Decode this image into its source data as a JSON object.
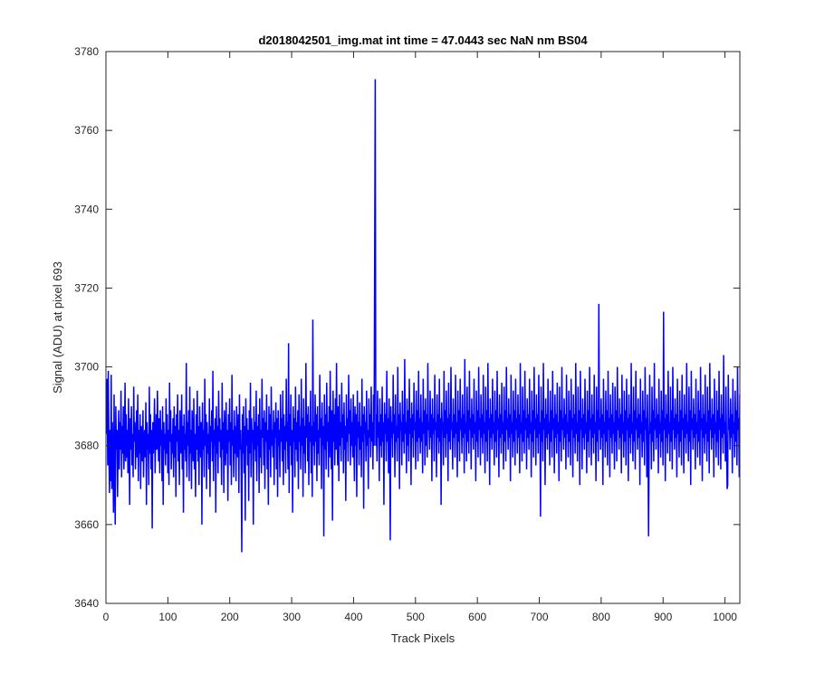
{
  "chart_data": {
    "type": "line",
    "title": "d2018042501_img.mat int time = 47.0443 sec  NaN nm BS04",
    "xlabel": "Track Pixels",
    "ylabel": "Signal (ADU) at pixel 693",
    "xlim": [
      0,
      1024
    ],
    "ylim": [
      3640,
      3780
    ],
    "xticks": [
      0,
      100,
      200,
      300,
      400,
      500,
      600,
      700,
      800,
      900,
      1000
    ],
    "yticks": [
      3640,
      3660,
      3680,
      3700,
      3720,
      3740,
      3760,
      3780
    ],
    "grid": false,
    "legend": "none",
    "series_color": "#0000ff",
    "x_start": 1,
    "y": [
      3683,
      3697,
      3675,
      3699,
      3680,
      3668,
      3684,
      3671,
      3698,
      3669,
      3686,
      3676,
      3663,
      3693,
      3672,
      3660,
      3690,
      3679,
      3684,
      3667,
      3681,
      3689,
      3674,
      3686,
      3679,
      3694,
      3672,
      3685,
      3678,
      3690,
      3674,
      3682,
      3696,
      3676,
      3688,
      3677,
      3684,
      3673,
      3692,
      3680,
      3665,
      3687,
      3679,
      3690,
      3675,
      3683,
      3672,
      3695,
      3681,
      3686,
      3674,
      3681,
      3689,
      3677,
      3693,
      3671,
      3684,
      3678,
      3688,
      3669,
      3685,
      3683,
      3676,
      3689,
      3672,
      3682,
      3684,
      3677,
      3691,
      3665,
      3686,
      3679,
      3683,
      3670,
      3695,
      3678,
      3688,
      3674,
      3684,
      3659,
      3686,
      3678,
      3683,
      3692,
      3673,
      3681,
      3688,
      3679,
      3694,
      3683,
      3676,
      3687,
      3673,
      3689,
      3680,
      3684,
      3671,
      3690,
      3665,
      3686,
      3679,
      3683,
      3675,
      3692,
      3678,
      3688,
      3673,
      3684,
      3670,
      3696,
      3681,
      3689,
      3674,
      3683,
      3678,
      3687,
      3672,
      3690,
      3677,
      3685,
      3667,
      3688,
      3681,
      3693,
      3676,
      3684,
      3670,
      3689,
      3682,
      3678,
      3693,
      3674,
      3685,
      3663,
      3688,
      3679,
      3683,
      3676,
      3701,
      3672,
      3686,
      3680,
      3689,
      3671,
      3695,
      3678,
      3684,
      3669,
      3689,
      3681,
      3676,
      3692,
      3674,
      3683,
      3667,
      3688,
      3679,
      3694,
      3676,
      3685,
      3670,
      3690,
      3682,
      3677,
      3686,
      3660,
      3691,
      3679,
      3684,
      3672,
      3697,
      3680,
      3688,
      3669,
      3686,
      3678,
      3683,
      3674,
      3692,
      3667,
      3685,
      3681,
      3689,
      3676,
      3699,
      3671,
      3684,
      3680,
      3687,
      3663,
      3690,
      3678,
      3685,
      3673,
      3694,
      3681,
      3687,
      3677,
      3684,
      3670,
      3696,
      3679,
      3686,
      3668,
      3689,
      3682,
      3675,
      3691,
      3678,
      3684,
      3666,
      3688,
      3681,
      3692,
      3675,
      3686,
      3670,
      3698,
      3680,
      3684,
      3672,
      3689,
      3678,
      3685,
      3671,
      3690,
      3682,
      3677,
      3688,
      3668,
      3693,
      3679,
      3684,
      3674,
      3653,
      3688,
      3678,
      3690,
      3673,
      3685,
      3661,
      3692,
      3680,
      3687,
      3675,
      3684,
      3666,
      3689,
      3678,
      3696,
      3672,
      3687,
      3681,
      3684,
      3660,
      3690,
      3679,
      3686,
      3676,
      3694,
      3671,
      3685,
      3680,
      3688,
      3668,
      3692,
      3677,
      3684,
      3673,
      3697,
      3682,
      3687,
      3675,
      3689,
      3669,
      3686,
      3681,
      3693,
      3674,
      3684,
      3665,
      3690,
      3679,
      3688,
      3672,
      3695,
      3680,
      3684,
      3677,
      3689,
      3670,
      3686,
      3682,
      3691,
      3674,
      3687,
      3667,
      3689,
      3680,
      3684,
      3672,
      3693,
      3681,
      3687,
      3676,
      3694,
      3670,
      3688,
      3679,
      3685,
      3673,
      3697,
      3681,
      3686,
      3674,
      3706,
      3668,
      3688,
      3680,
      3693,
      3675,
      3684,
      3663,
      3690,
      3681,
      3687,
      3672,
      3695,
      3679,
      3686,
      3676,
      3689,
      3669,
      3693,
      3681,
      3685,
      3674,
      3697,
      3680,
      3687,
      3667,
      3692,
      3678,
      3685,
      3673,
      3701,
      3682,
      3688,
      3676,
      3690,
      3670,
      3686,
      3681,
      3694,
      3673,
      3685,
      3667,
      3712,
      3680,
      3686,
      3675,
      3693,
      3681,
      3688,
      3671,
      3690,
      3678,
      3684,
      3675,
      3698,
      3682,
      3687,
      3669,
      3691,
      3680,
      3685,
      3657,
      3693,
      3679,
      3688,
      3674,
      3696,
      3681,
      3686,
      3672,
      3690,
      3677,
      3699,
      3684,
      3674,
      3689,
      3661,
      3694,
      3681,
      3688,
      3675,
      3692,
      3679,
      3701,
      3682,
      3675,
      3690,
      3671,
      3693,
      3680,
      3686,
      3676,
      3696,
      3682,
      3688,
      3673,
      3691,
      3679,
      3685,
      3666,
      3693,
      3681,
      3687,
      3676,
      3698,
      3683,
      3689,
      3675,
      3692,
      3680,
      3686,
      3677,
      3693,
      3681,
      3671,
      3690,
      3680,
      3688,
      3667,
      3694,
      3682,
      3686,
      3675,
      3691,
      3679,
      3685,
      3672,
      3697,
      3681,
      3688,
      3664,
      3690,
      3683,
      3686,
      3676,
      3694,
      3680,
      3684,
      3669,
      3692,
      3682,
      3688,
      3677,
      3695,
      3681,
      3686,
      3674,
      3693,
      3680,
      3727,
      3773,
      3680,
      3688,
      3676,
      3694,
      3682,
      3686,
      3671,
      3692,
      3680,
      3688,
      3677,
      3695,
      3681,
      3686,
      3665,
      3691,
      3683,
      3688,
      3676,
      3699,
      3681,
      3687,
      3673,
      3692,
      3680,
      3656,
      3690,
      3682,
      3686,
      3677,
      3698,
      3683,
      3688,
      3672,
      3693,
      3681,
      3685,
      3676,
      3700,
      3682,
      3688,
      3669,
      3691,
      3684,
      3686,
      3675,
      3694,
      3681,
      3688,
      3678,
      3702,
      3683,
      3686,
      3673,
      3692,
      3680,
      3689,
      3676,
      3697,
      3683,
      3687,
      3670,
      3691,
      3682,
      3688,
      3677,
      3696,
      3684,
      3686,
      3674,
      3694,
      3681,
      3689,
      3676,
      3699,
      3682,
      3687,
      3678,
      3693,
      3681,
      3686,
      3673,
      3697,
      3683,
      3689,
      3675,
      3692,
      3680,
      3688,
      3677,
      3701,
      3684,
      3686,
      3679,
      3694,
      3682,
      3688,
      3671,
      3692,
      3683,
      3687,
      3676,
      3698,
      3684,
      3686,
      3672,
      3693,
      3682,
      3688,
      3678,
      3697,
      3681,
      3687,
      3665,
      3691,
      3684,
      3686,
      3675,
      3699,
      3682,
      3689,
      3677,
      3694,
      3683,
      3687,
      3671,
      3696,
      3681,
      3688,
      3679,
      3700,
      3684,
      3686,
      3674,
      3692,
      3682,
      3688,
      3677,
      3698,
      3683,
      3686,
      3672,
      3694,
      3681,
      3689,
      3676,
      3697,
      3684,
      3687,
      3678,
      3693,
      3682,
      3688,
      3673,
      3702,
      3683,
      3686,
      3676,
      3695,
      3681,
      3689,
      3678,
      3699,
      3684,
      3687,
      3674,
      3692,
      3682,
      3688,
      3679,
      3697,
      3683,
      3686,
      3671,
      3694,
      3681,
      3689,
      3677,
      3700,
      3684,
      3687,
      3675,
      3693,
      3682,
      3688,
      3678,
      3698,
      3683,
      3686,
      3673,
      3695,
      3681,
      3689,
      3676,
      3701,
      3684,
      3687,
      3670,
      3692,
      3682,
      3688,
      3679,
      3697,
      3683,
      3686,
      3675,
      3694,
      3681,
      3689,
      3677,
      3699,
      3684,
      3687,
      3672,
      3693,
      3682,
      3688,
      3678,
      3696,
      3683,
      3686,
      3674,
      3695,
      3681,
      3689,
      3676,
      3700,
      3684,
      3687,
      3679,
      3692,
      3682,
      3688,
      3671,
      3698,
      3683,
      3686,
      3677,
      3694,
      3681,
      3689,
      3675,
      3697,
      3684,
      3687,
      3678,
      3693,
      3682,
      3688,
      3673,
      3701,
      3683,
      3686,
      3676,
      3695,
      3681,
      3689,
      3678,
      3699,
      3684,
      3687,
      3674,
      3692,
      3682,
      3688,
      3679,
      3697,
      3683,
      3686,
      3672,
      3694,
      3681,
      3689,
      3677,
      3700,
      3684,
      3687,
      3675,
      3693,
      3682,
      3688,
      3678,
      3698,
      3683,
      3686,
      3662,
      3695,
      3681,
      3689,
      3676,
      3701,
      3684,
      3687,
      3670,
      3692,
      3682,
      3688,
      3679,
      3697,
      3683,
      3686,
      3675,
      3694,
      3681,
      3689,
      3677,
      3699,
      3684,
      3687,
      3673,
      3693,
      3682,
      3688,
      3678,
      3696,
      3683,
      3686,
      3671,
      3695,
      3681,
      3689,
      3676,
      3700,
      3684,
      3687,
      3679,
      3692,
      3682,
      3688,
      3674,
      3698,
      3683,
      3686,
      3677,
      3694,
      3681,
      3689,
      3675,
      3697,
      3684,
      3687,
      3672,
      3693,
      3682,
      3688,
      3678,
      3701,
      3683,
      3686,
      3676,
      3695,
      3681,
      3689,
      3670,
      3699,
      3684,
      3687,
      3674,
      3692,
      3682,
      3688,
      3679,
      3697,
      3683,
      3686,
      3673,
      3694,
      3681,
      3689,
      3677,
      3700,
      3684,
      3687,
      3675,
      3693,
      3682,
      3688,
      3678,
      3698,
      3683,
      3686,
      3671,
      3695,
      3681,
      3689,
      3676,
      3716,
      3684,
      3687,
      3679,
      3692,
      3682,
      3688,
      3670,
      3697,
      3683,
      3686,
      3677,
      3694,
      3681,
      3689,
      3675,
      3699,
      3684,
      3687,
      3672,
      3693,
      3682,
      3688,
      3678,
      3696,
      3683,
      3686,
      3674,
      3695,
      3681,
      3689,
      3676,
      3700,
      3684,
      3687,
      3679,
      3692,
      3682,
      3688,
      3673,
      3698,
      3683,
      3686,
      3677,
      3694,
      3681,
      3689,
      3675,
      3697,
      3684,
      3687,
      3671,
      3693,
      3682,
      3688,
      3678,
      3701,
      3683,
      3686,
      3676,
      3695,
      3681,
      3689,
      3674,
      3699,
      3684,
      3687,
      3679,
      3692,
      3682,
      3688,
      3670,
      3697,
      3683,
      3686,
      3677,
      3694,
      3681,
      3689,
      3675,
      3700,
      3684,
      3687,
      3672,
      3693,
      3682,
      3657,
      3678,
      3698,
      3683,
      3686,
      3674,
      3695,
      3681,
      3689,
      3676,
      3701,
      3684,
      3687,
      3679,
      3692,
      3682,
      3688,
      3673,
      3697,
      3683,
      3686,
      3677,
      3694,
      3681,
      3689,
      3675,
      3714,
      3684,
      3687,
      3671,
      3693,
      3682,
      3688,
      3678,
      3699,
      3683,
      3686,
      3676,
      3695,
      3681,
      3689,
      3674,
      3700,
      3684,
      3687,
      3679,
      3692,
      3682,
      3688,
      3672,
      3697,
      3683,
      3686,
      3677,
      3694,
      3681,
      3689,
      3675,
      3698,
      3684,
      3687,
      3673,
      3693,
      3682,
      3688,
      3678,
      3701,
      3683,
      3686,
      3676,
      3695,
      3681,
      3689,
      3670,
      3699,
      3684,
      3687,
      3679,
      3692,
      3682,
      3688,
      3674,
      3697,
      3683,
      3686,
      3677,
      3694,
      3681,
      3689,
      3675,
      3700,
      3684,
      3687,
      3671,
      3693,
      3682,
      3688,
      3678,
      3698,
      3683,
      3686,
      3676,
      3695,
      3681,
      3689,
      3673,
      3701,
      3684,
      3687,
      3679,
      3692,
      3682,
      3688,
      3672,
      3697,
      3683,
      3686,
      3677,
      3694,
      3681,
      3689,
      3675,
      3699,
      3684,
      3687,
      3674,
      3693,
      3682,
      3688,
      3678,
      3703,
      3683,
      3686,
      3676,
      3695,
      3681,
      3669,
      3670,
      3698,
      3684,
      3687,
      3679,
      3692,
      3682,
      3688,
      3673,
      3697,
      3683,
      3686,
      3677,
      3694,
      3681,
      3689,
      3675,
      3700,
      3684,
      3687,
      3672,
      3693
    ]
  }
}
